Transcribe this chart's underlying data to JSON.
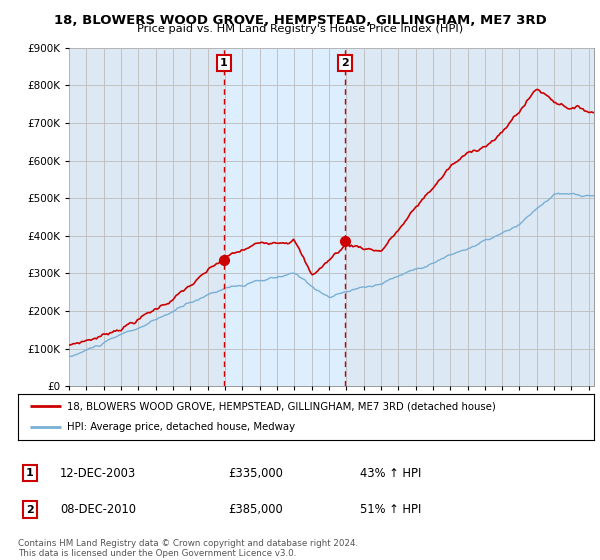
{
  "title": "18, BLOWERS WOOD GROVE, HEMPSTEAD, GILLINGHAM, ME7 3RD",
  "subtitle": "Price paid vs. HM Land Registry's House Price Index (HPI)",
  "legend_line1": "18, BLOWERS WOOD GROVE, HEMPSTEAD, GILLINGHAM, ME7 3RD (detached house)",
  "legend_line2": "HPI: Average price, detached house, Medway",
  "sale1_label": "1",
  "sale1_date": "12-DEC-2003",
  "sale1_price": "£335,000",
  "sale1_hpi": "43% ↑ HPI",
  "sale2_label": "2",
  "sale2_date": "08-DEC-2010",
  "sale2_price": "£385,000",
  "sale2_hpi": "51% ↑ HPI",
  "footnote": "Contains HM Land Registry data © Crown copyright and database right 2024.\nThis data is licensed under the Open Government Licence v3.0.",
  "sale1_year": 2003.92,
  "sale2_year": 2010.92,
  "sale1_red_val": 335000,
  "sale2_red_val": 385000,
  "red_line_color": "#cc0000",
  "blue_line_color": "#7aafd4",
  "shade_color": "#ddeeff",
  "background_color": "#dce9f5",
  "grid_color": "#bbbbbb",
  "vline_color": "#cc0000",
  "marker_box_color": "#cc0000",
  "ylim": [
    0,
    900000
  ],
  "xlim_left": 1995.0,
  "xlim_right": 2025.3
}
